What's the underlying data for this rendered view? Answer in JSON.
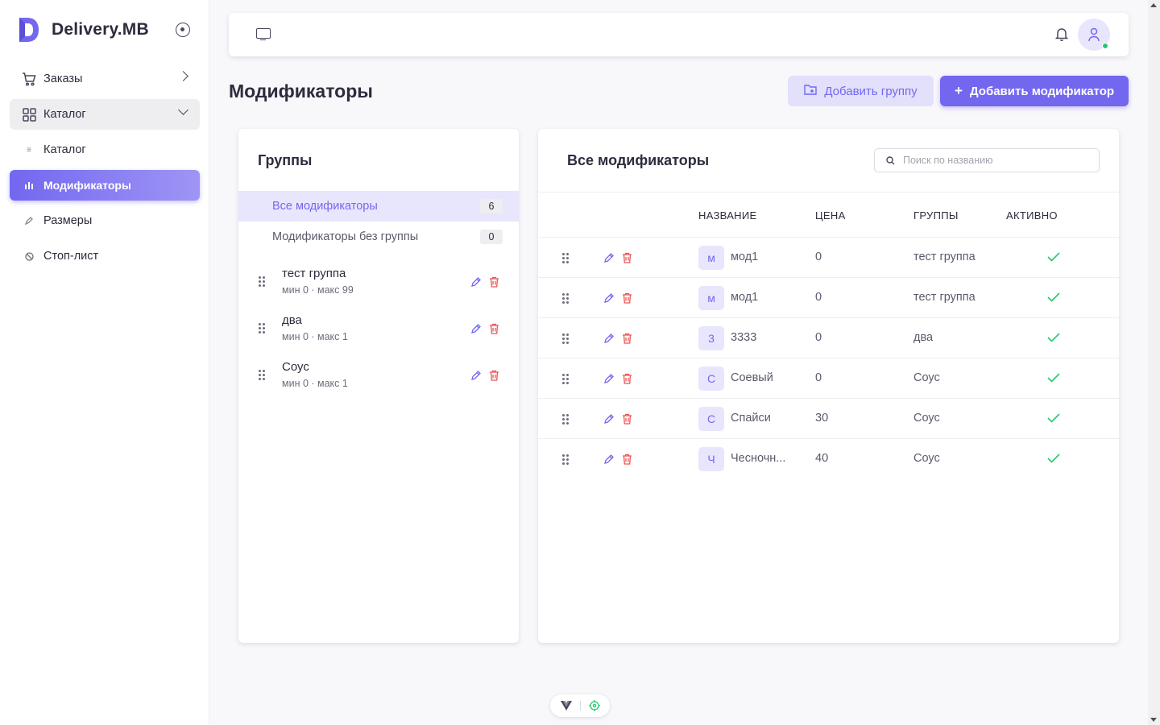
{
  "app": {
    "brand_name": "Delivery.MB",
    "brand_color": "#7367f0"
  },
  "sidebar": {
    "items": [
      {
        "label": "Заказы",
        "icon": "cart-icon"
      },
      {
        "label": "Каталог",
        "icon": "grid-icon",
        "expanded": true
      },
      {
        "label": "Каталог",
        "icon": "list-icon",
        "sub": true
      },
      {
        "label": "Модификаторы",
        "icon": "sliders-icon",
        "sub": true,
        "active": true
      },
      {
        "label": "Размеры",
        "icon": "pencil-icon",
        "sub": true
      },
      {
        "label": "Стоп-лист",
        "icon": "ban-icon"
      }
    ]
  },
  "page": {
    "title": "Модификаторы",
    "add_group_label": "Добавить группу",
    "add_modifier_label": "Добавить модификатор"
  },
  "groups": {
    "title": "Группы",
    "filters": [
      {
        "label": "Все модификаторы",
        "count": "6",
        "active": true
      },
      {
        "label": "Модификаторы без группы",
        "count": "0"
      }
    ],
    "items": [
      {
        "name": "тест группа",
        "meta": "мин 0 · макс 99"
      },
      {
        "name": "два",
        "meta": "мин 0 · макс 1"
      },
      {
        "name": "Соус",
        "meta": "мин 0 · макс 1"
      }
    ]
  },
  "modifiers": {
    "title": "Все модификаторы",
    "search_placeholder": "Поиск по названию",
    "columns": {
      "name": "НАЗВАНИЕ",
      "price": "ЦЕНА",
      "groups": "ГРУППЫ",
      "active": "АКТИВНО"
    },
    "rows": [
      {
        "letter": "м",
        "name": "мод1",
        "price": "0",
        "group": "тест группа",
        "active": true
      },
      {
        "letter": "м",
        "name": "мод1",
        "price": "0",
        "group": "тест группа",
        "active": true
      },
      {
        "letter": "3",
        "name": "3333",
        "price": "0",
        "group": "два",
        "active": true
      },
      {
        "letter": "С",
        "name": "Соевый",
        "price": "0",
        "group": "Соус",
        "active": true
      },
      {
        "letter": "С",
        "name": "Спайси",
        "price": "30",
        "group": "Соус",
        "active": true
      },
      {
        "letter": "Ч",
        "name": "Чесночн...",
        "price": "40",
        "group": "Соус",
        "active": true
      }
    ]
  },
  "colors": {
    "accent": "#7367f0",
    "danger": "#ea5455",
    "success": "#28c76f"
  }
}
